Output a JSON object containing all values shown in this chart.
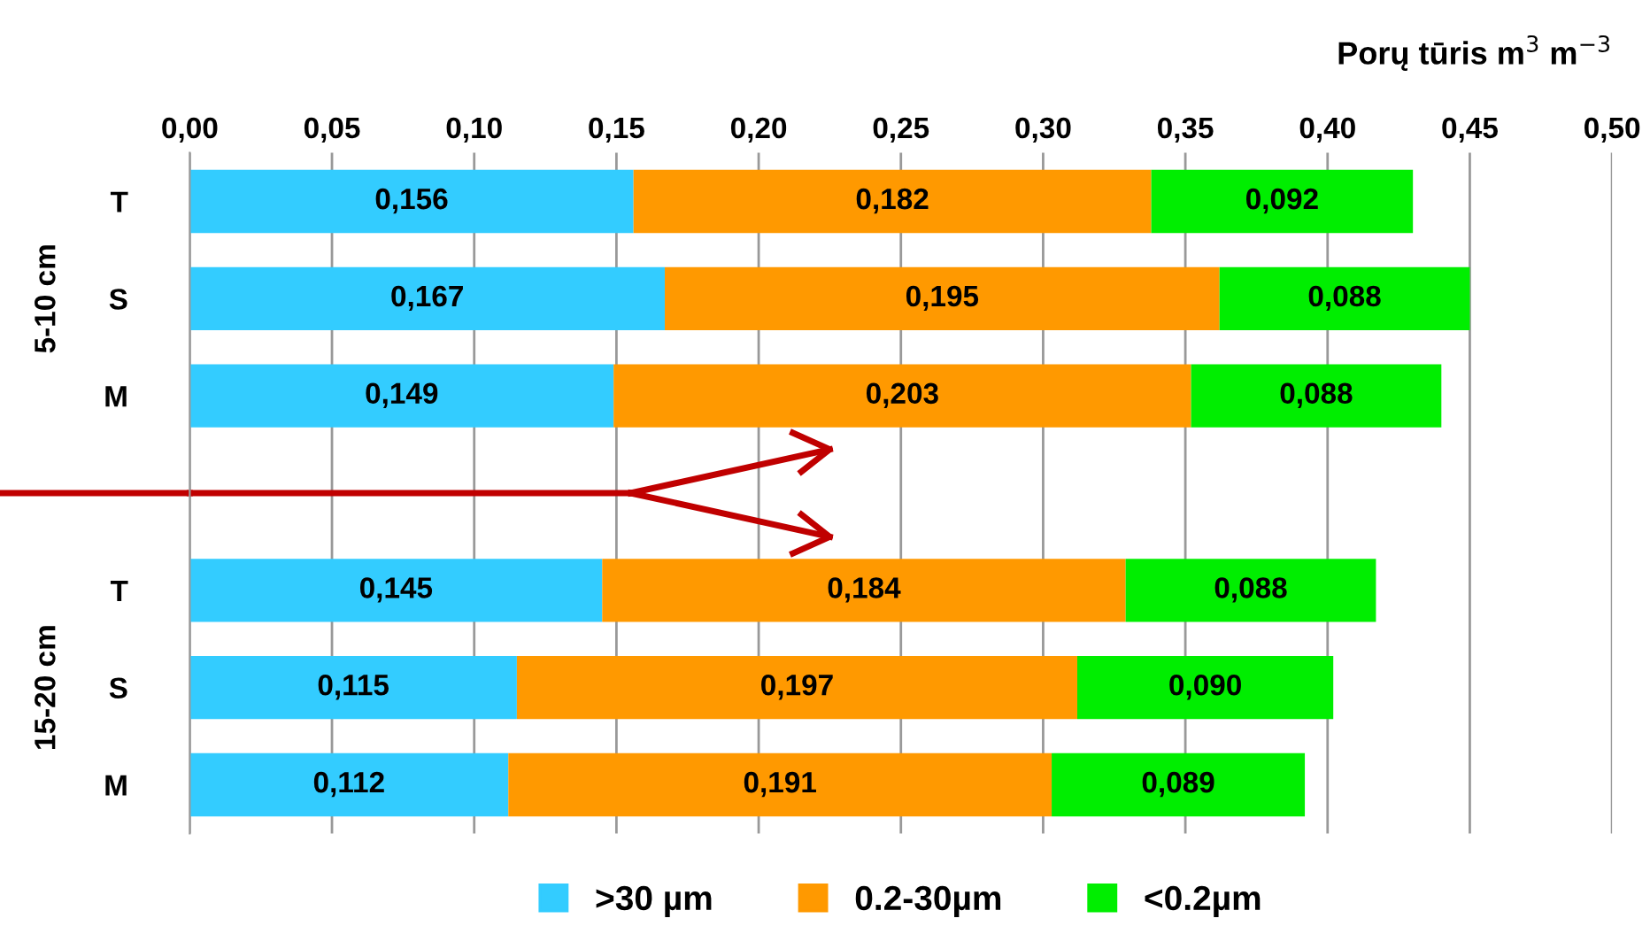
{
  "chart_data": {
    "type": "bar",
    "orientation": "horizontal",
    "stacked": true,
    "xlabel": "Porų tūris m$^{3}$ m$^{−3}$",
    "categories": [
      "T",
      "S",
      "M",
      null,
      "T",
      "S",
      "M"
    ],
    "annotations": [
      "5-10 cm",
      "15-20 cm"
    ],
    "series": [
      {
        "name": ">30 µm",
        "color": "#33ccff",
        "values": [
          0.156,
          0.167,
          0.149,
          null,
          0.145,
          0.115,
          0.112
        ],
        "value_labels": [
          "0,156",
          "0,167",
          "0,149",
          null,
          "0,145",
          "0,115",
          "0,112"
        ]
      },
      {
        "name": "0.2-30µm",
        "color": "#ff9900",
        "values": [
          0.182,
          0.195,
          0.203,
          null,
          0.184,
          0.197,
          0.191
        ],
        "value_labels": [
          "0,182",
          "0,195",
          "0,203",
          null,
          "0,184",
          "0,197",
          "0,191"
        ]
      },
      {
        "name": "<0.2µm",
        "color": "#00ee00",
        "values": [
          0.092,
          0.088,
          0.088,
          null,
          0.088,
          0.09,
          0.089
        ],
        "value_labels": [
          "0,092",
          "0,088",
          "0,088",
          null,
          "0,088",
          "0,090",
          "0,089"
        ]
      }
    ],
    "xlim": [
      0,
      0.5
    ],
    "xticks": [
      {
        "value": 0,
        "label": "0,00"
      },
      {
        "value": 0.05,
        "label": "0,05"
      },
      {
        "value": 0.1,
        "label": "0,10"
      },
      {
        "value": 0.15,
        "label": "0,15"
      },
      {
        "value": 0.2,
        "label": "0,20"
      },
      {
        "value": 0.25,
        "label": "0,25"
      },
      {
        "value": 0.3,
        "label": "0,30"
      },
      {
        "value": 0.35,
        "label": "0,35"
      },
      {
        "value": 0.4,
        "label": "0,40"
      },
      {
        "value": 0.45,
        "label": "0,45"
      },
      {
        "value": 0.5,
        "label": "0,50"
      }
    ],
    "grid": "x",
    "legend": "bottom"
  }
}
